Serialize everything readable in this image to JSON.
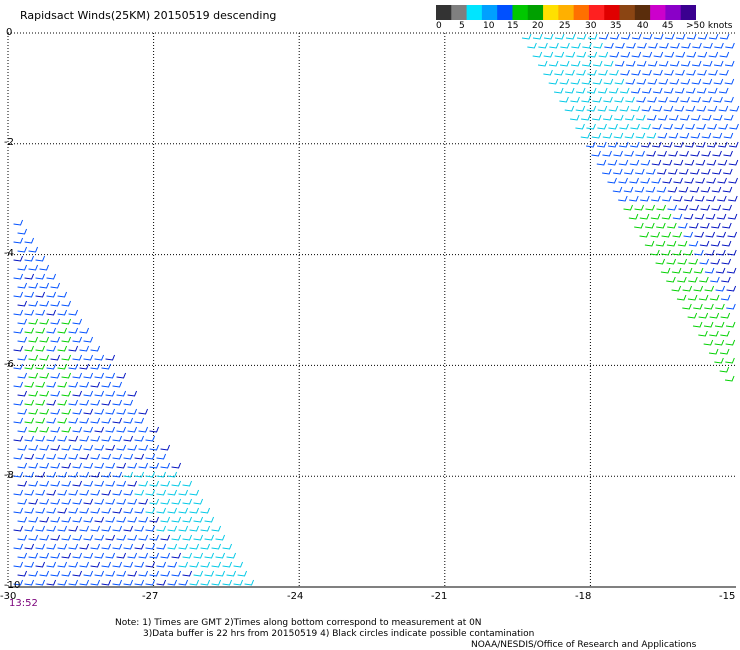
{
  "title": "Rapidsact Winds(25KM) 20150519 descending",
  "colorbar": {
    "labels": [
      "0",
      "5",
      "10",
      "15",
      "20",
      "25",
      "30",
      "35",
      "40",
      "45",
      ">50 knots"
    ],
    "colors": [
      "#333333",
      "#7f7f7f",
      "#00e5ff",
      "#00a0ff",
      "#0050ff",
      "#00c800",
      "#00a000",
      "#ffe000",
      "#ffb000",
      "#ff7000",
      "#ff2020",
      "#e00000",
      "#8b4513",
      "#5a2d0c",
      "#cc00cc",
      "#8a00c8",
      "#3a0090"
    ]
  },
  "axes": {
    "x_ticks": [
      "-30",
      "-27",
      "-24",
      "-21",
      "-18",
      "-15"
    ],
    "y_ticks": [
      "0",
      "-2",
      "-4",
      "-6",
      "-8",
      "-10"
    ],
    "x_range": [
      -30,
      -15
    ],
    "y_range": [
      0,
      -10
    ],
    "grid": true
  },
  "time_label": "13:52",
  "notes": {
    "line1": "Note: 1) Times are GMT 2)Times along bottom correspond to measurement at 0N",
    "line2": "3)Data buffer is 22 hrs from 20150519 4) Black circles indicate possible contamination",
    "line3": "NOAA/NESDIS/Office of Research and Applications"
  },
  "swaths": {
    "speed_colors": {
      "low": "#00c8e6",
      "mid": "#0050ff",
      "dark": "#0010c0",
      "green": "#00d000"
    }
  }
}
